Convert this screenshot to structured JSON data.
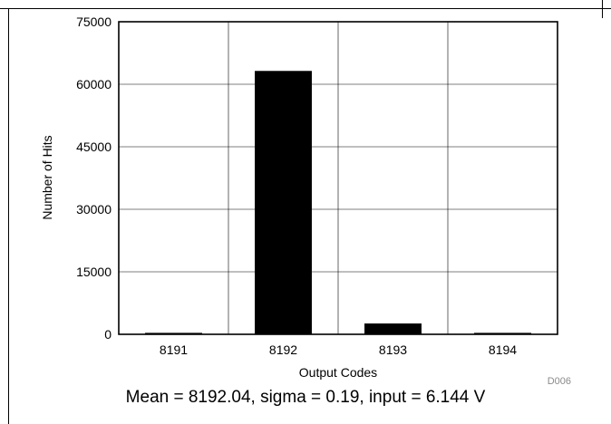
{
  "chart_data": {
    "type": "bar",
    "title": "",
    "xlabel": "Output Codes",
    "ylabel": "Number of Hits",
    "categories": [
      "8191",
      "8192",
      "8193",
      "8194"
    ],
    "values": [
      0,
      63200,
      2600,
      0
    ],
    "ylim": [
      0,
      75000
    ],
    "yticks": [
      0,
      15000,
      30000,
      45000,
      60000,
      75000
    ],
    "grid": true,
    "bar_color": "#000000"
  },
  "figure_id": "D006",
  "caption": "Mean = 8192.04, sigma = 0.19, input = 6.144 V"
}
